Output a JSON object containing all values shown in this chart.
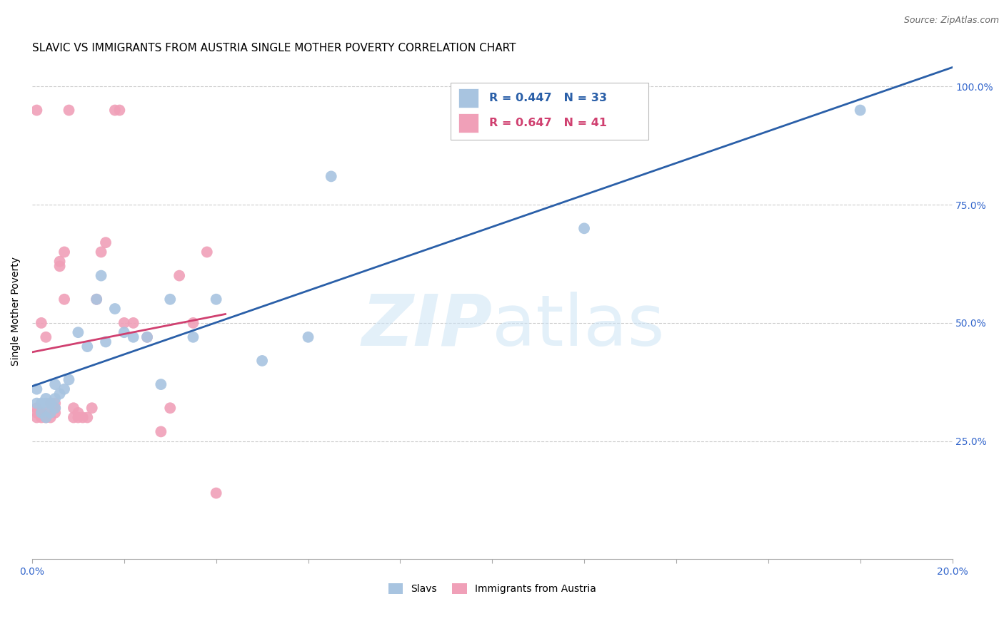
{
  "title": "SLAVIC VS IMMIGRANTS FROM AUSTRIA SINGLE MOTHER POVERTY CORRELATION CHART",
  "source": "Source: ZipAtlas.com",
  "ylabel": "Single Mother Poverty",
  "xlim": [
    0.0,
    0.2
  ],
  "ylim": [
    0.0,
    1.05
  ],
  "ytick_values": [
    0.0,
    0.25,
    0.5,
    0.75,
    1.0
  ],
  "xtick_values": [
    0.0,
    0.02,
    0.04,
    0.06,
    0.08,
    0.1,
    0.12,
    0.14,
    0.16,
    0.18,
    0.2
  ],
  "blue_R": 0.447,
  "blue_N": 33,
  "pink_R": 0.647,
  "pink_N": 41,
  "blue_color": "#a8c4e0",
  "pink_color": "#f0a0b8",
  "blue_line_color": "#2a5fa8",
  "pink_line_color": "#d04070",
  "tick_color": "#3366cc",
  "title_fontsize": 11,
  "axis_label_fontsize": 10,
  "tick_fontsize": 10,
  "blue_scatter_x": [
    0.001,
    0.001,
    0.002,
    0.002,
    0.003,
    0.003,
    0.003,
    0.004,
    0.004,
    0.005,
    0.005,
    0.005,
    0.006,
    0.007,
    0.008,
    0.01,
    0.012,
    0.014,
    0.015,
    0.016,
    0.018,
    0.02,
    0.022,
    0.025,
    0.028,
    0.03,
    0.035,
    0.04,
    0.05,
    0.06,
    0.065,
    0.12,
    0.18
  ],
  "blue_scatter_y": [
    0.33,
    0.36,
    0.31,
    0.33,
    0.3,
    0.33,
    0.34,
    0.31,
    0.33,
    0.32,
    0.34,
    0.37,
    0.35,
    0.36,
    0.38,
    0.48,
    0.45,
    0.55,
    0.6,
    0.46,
    0.53,
    0.48,
    0.47,
    0.47,
    0.37,
    0.55,
    0.47,
    0.55,
    0.42,
    0.47,
    0.81,
    0.7,
    0.95
  ],
  "pink_scatter_x": [
    0.001,
    0.001,
    0.001,
    0.001,
    0.002,
    0.002,
    0.002,
    0.003,
    0.003,
    0.003,
    0.004,
    0.004,
    0.005,
    0.005,
    0.005,
    0.006,
    0.006,
    0.007,
    0.007,
    0.008,
    0.009,
    0.009,
    0.01,
    0.01,
    0.011,
    0.012,
    0.013,
    0.014,
    0.015,
    0.016,
    0.018,
    0.019,
    0.02,
    0.022,
    0.025,
    0.028,
    0.03,
    0.032,
    0.035,
    0.038,
    0.04
  ],
  "pink_scatter_y": [
    0.3,
    0.31,
    0.32,
    0.95,
    0.3,
    0.31,
    0.5,
    0.3,
    0.31,
    0.47,
    0.3,
    0.33,
    0.31,
    0.32,
    0.33,
    0.62,
    0.63,
    0.65,
    0.55,
    0.95,
    0.3,
    0.32,
    0.3,
    0.31,
    0.3,
    0.3,
    0.32,
    0.55,
    0.65,
    0.67,
    0.95,
    0.95,
    0.5,
    0.5,
    0.47,
    0.27,
    0.32,
    0.6,
    0.5,
    0.65,
    0.14
  ]
}
